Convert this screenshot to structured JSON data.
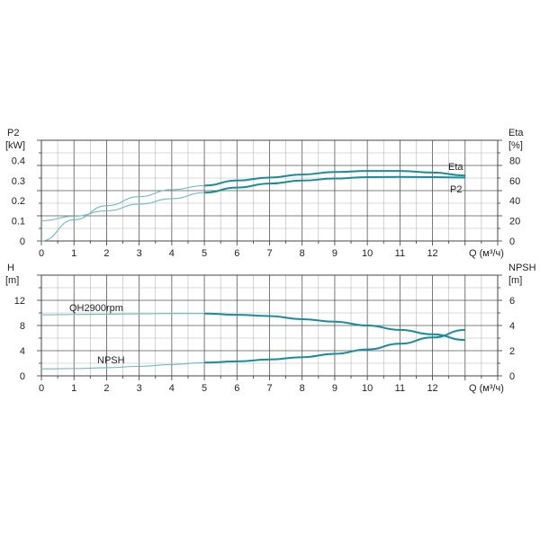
{
  "chart_data": [
    {
      "type": "line",
      "x_label": "Q (м³/ч)",
      "x_ticks": [
        "0",
        "1",
        "2",
        "3",
        "4",
        "5",
        "6",
        "7",
        "8",
        "9",
        "10",
        "11",
        "12"
      ],
      "xlim": [
        0,
        14
      ],
      "left_axis": {
        "label_line1": "P2",
        "label_line2": "[kW]",
        "ticks": [
          "0",
          "0.1",
          "0.2",
          "0.3",
          "0.4"
        ],
        "ylim": [
          0,
          0.5
        ]
      },
      "right_axis": {
        "label_line1": "Eta",
        "label_line2": "[%]",
        "ticks": [
          "0",
          "20",
          "40",
          "60",
          "80"
        ],
        "ylim": [
          0,
          100
        ]
      },
      "grid": true,
      "series": [
        {
          "name": "Eta",
          "axis": "right",
          "x": [
            0,
            1,
            2,
            3,
            4,
            5,
            6,
            7,
            8,
            9,
            10,
            11,
            12,
            13
          ],
          "y": [
            0,
            21,
            35,
            44,
            51,
            55,
            60,
            63,
            66,
            68.5,
            69.5,
            69.5,
            68,
            65
          ]
        },
        {
          "name": "P2",
          "axis": "left",
          "x": [
            0,
            1,
            2,
            3,
            4,
            5,
            6,
            7,
            8,
            9,
            10,
            11,
            12,
            13
          ],
          "y": [
            0.1,
            0.123,
            0.15,
            0.183,
            0.21,
            0.24,
            0.265,
            0.285,
            0.3,
            0.31,
            0.317,
            0.318,
            0.317,
            0.315
          ]
        }
      ]
    },
    {
      "type": "line",
      "x_label": "Q (м³/ч)",
      "x_ticks": [
        "0",
        "1",
        "2",
        "3",
        "4",
        "5",
        "6",
        "7",
        "8",
        "9",
        "10",
        "11",
        "12"
      ],
      "xlim": [
        0,
        14
      ],
      "left_axis": {
        "label_line1": "H",
        "label_line2": "[m]",
        "ticks": [
          "0",
          "4",
          "8",
          "12"
        ],
        "ylim": [
          0,
          16
        ]
      },
      "right_axis": {
        "label_line1": "NPSH",
        "label_line2": "[m]",
        "ticks": [
          "0",
          "2",
          "4",
          "6"
        ],
        "ylim": [
          0,
          8
        ]
      },
      "grid": true,
      "series": [
        {
          "name": "QH2900rpm",
          "axis": "left",
          "x": [
            0,
            1,
            2,
            3,
            4,
            5,
            6,
            7,
            8,
            9,
            10,
            11,
            12,
            13
          ],
          "y": [
            9.7,
            9.75,
            9.8,
            9.85,
            9.9,
            9.9,
            9.7,
            9.5,
            9.0,
            8.6,
            8.0,
            7.3,
            6.6,
            5.7
          ]
        },
        {
          "name": "NPSH",
          "axis": "right",
          "x": [
            0,
            1,
            2,
            3,
            4,
            5,
            6,
            7,
            8,
            9,
            10,
            11,
            12,
            13
          ],
          "y": [
            0.55,
            0.58,
            0.65,
            0.75,
            0.9,
            1.05,
            1.15,
            1.3,
            1.48,
            1.75,
            2.1,
            2.55,
            3.05,
            3.65
          ]
        }
      ]
    }
  ],
  "colors": {
    "curve": "#1b8c99",
    "curve_light": "#6fb9c0",
    "grid": "#b5b5b5",
    "grid_major": "#555555"
  }
}
